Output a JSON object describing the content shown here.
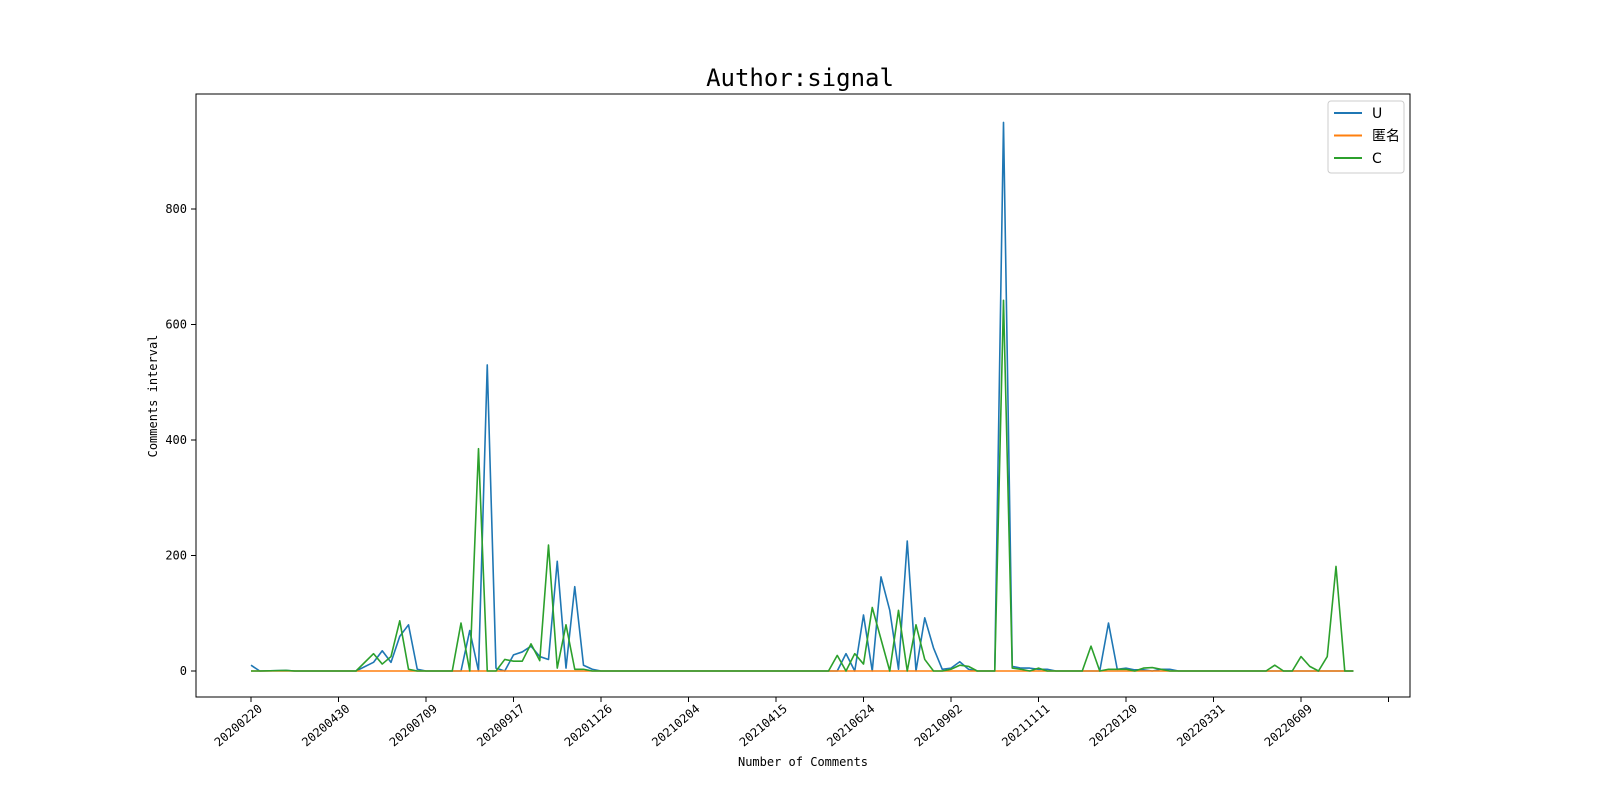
{
  "chart_data": {
    "type": "line",
    "title": "Author:signal",
    "xlabel": "Number of Comments",
    "ylabel": "Comments interval",
    "xticks": [
      "20200220",
      "20200430",
      "20200709",
      "20200917",
      "20201126",
      "20210204",
      "20210415",
      "20210624",
      "20210902",
      "20211111",
      "20220120",
      "20220331",
      "20220609",
      ""
    ],
    "ylim": [
      -46,
      995
    ],
    "yticks": [
      0,
      200,
      400,
      600,
      800
    ],
    "grid": false,
    "legend_position": "top-right",
    "colors": {
      "U": "#1f77b4",
      "匿名": "#ff7f0e",
      "C": "#2ca02c"
    },
    "series": [
      {
        "name": "U",
        "values": [
          10,
          0,
          0,
          0,
          1,
          0,
          0,
          0,
          0,
          0,
          0,
          0,
          0,
          0,
          15,
          35,
          15,
          60,
          80,
          3,
          0,
          0,
          0,
          0,
          0,
          70,
          0,
          530,
          5,
          0,
          28,
          33,
          43,
          25,
          20,
          190,
          5,
          146,
          10,
          3,
          0,
          0,
          0,
          0,
          0,
          0,
          0,
          0,
          0,
          0,
          0,
          0,
          0,
          0,
          0,
          0,
          0,
          0,
          0,
          0,
          0,
          0,
          0,
          0,
          0,
          0,
          0,
          30,
          0,
          97,
          0,
          163,
          105,
          3,
          225,
          0,
          92,
          40,
          3,
          5,
          16,
          3,
          0,
          0,
          0,
          950,
          8,
          5,
          5,
          3,
          3,
          0,
          0,
          0,
          0,
          0,
          0,
          0,
          83,
          3,
          5,
          2,
          2,
          0,
          3,
          3,
          0,
          0,
          0,
          0,
          0,
          0,
          0,
          0,
          0,
          0,
          0,
          0,
          0,
          0,
          0,
          0,
          0,
          0,
          0,
          0,
          0,
          0,
          0,
          0
        ],
        "points": [
          [
            0,
            10
          ],
          [
            1,
            0
          ],
          [
            4,
            1
          ],
          [
            5,
            0
          ],
          [
            12,
            0
          ],
          [
            14,
            15
          ],
          [
            15,
            35
          ],
          [
            16,
            15
          ],
          [
            17,
            60
          ],
          [
            18,
            80
          ],
          [
            19,
            3
          ],
          [
            20,
            0
          ],
          [
            24,
            0
          ],
          [
            25,
            70
          ],
          [
            26,
            0
          ],
          [
            27,
            530
          ],
          [
            28,
            5
          ],
          [
            29,
            0
          ],
          [
            30,
            28
          ],
          [
            31,
            33
          ],
          [
            32,
            43
          ],
          [
            33,
            25
          ],
          [
            34,
            20
          ],
          [
            35,
            190
          ],
          [
            36,
            5
          ],
          [
            37,
            146
          ],
          [
            38,
            10
          ],
          [
            39,
            3
          ],
          [
            40,
            0
          ],
          [
            67,
            0
          ],
          [
            68,
            30
          ],
          [
            69,
            0
          ],
          [
            70,
            97
          ],
          [
            71,
            0
          ],
          [
            72,
            163
          ],
          [
            73,
            105
          ],
          [
            74,
            3
          ],
          [
            75,
            225
          ],
          [
            76,
            0
          ],
          [
            77,
            92
          ],
          [
            78,
            40
          ],
          [
            79,
            3
          ],
          [
            80,
            5
          ],
          [
            81,
            16
          ],
          [
            82,
            3
          ],
          [
            83,
            0
          ],
          [
            85,
            0
          ],
          [
            86,
            950
          ],
          [
            87,
            8
          ],
          [
            88,
            5
          ],
          [
            89,
            5
          ],
          [
            90,
            3
          ],
          [
            91,
            3
          ],
          [
            92,
            0
          ],
          [
            97,
            0
          ],
          [
            98,
            83
          ],
          [
            99,
            3
          ],
          [
            100,
            5
          ],
          [
            101,
            2
          ],
          [
            102,
            2
          ],
          [
            103,
            0
          ],
          [
            104,
            3
          ],
          [
            105,
            3
          ],
          [
            106,
            0
          ],
          [
            126,
            0
          ]
        ]
      },
      {
        "name": "匿名",
        "values": [],
        "points": [
          [
            0,
            0
          ],
          [
            126,
            0
          ]
        ]
      },
      {
        "name": "C",
        "values": [],
        "points": [
          [
            0,
            0
          ],
          [
            1,
            0
          ],
          [
            4,
            1
          ],
          [
            5,
            0
          ],
          [
            12,
            0
          ],
          [
            14,
            30
          ],
          [
            15,
            12
          ],
          [
            16,
            25
          ],
          [
            17,
            87
          ],
          [
            18,
            3
          ],
          [
            19,
            0
          ],
          [
            20,
            0
          ],
          [
            23,
            0
          ],
          [
            24,
            83
          ],
          [
            25,
            0
          ],
          [
            26,
            385
          ],
          [
            27,
            0
          ],
          [
            28,
            0
          ],
          [
            29,
            20
          ],
          [
            30,
            17
          ],
          [
            31,
            17
          ],
          [
            32,
            47
          ],
          [
            33,
            18
          ],
          [
            34,
            218
          ],
          [
            35,
            5
          ],
          [
            36,
            80
          ],
          [
            37,
            3
          ],
          [
            38,
            3
          ],
          [
            39,
            0
          ],
          [
            66,
            0
          ],
          [
            67,
            27
          ],
          [
            68,
            0
          ],
          [
            69,
            30
          ],
          [
            70,
            12
          ],
          [
            71,
            110
          ],
          [
            72,
            55
          ],
          [
            73,
            0
          ],
          [
            74,
            105
          ],
          [
            75,
            0
          ],
          [
            76,
            80
          ],
          [
            77,
            20
          ],
          [
            78,
            0
          ],
          [
            79,
            0
          ],
          [
            80,
            3
          ],
          [
            81,
            10
          ],
          [
            82,
            8
          ],
          [
            83,
            0
          ],
          [
            84,
            0
          ],
          [
            85,
            0
          ],
          [
            86,
            642
          ],
          [
            87,
            5
          ],
          [
            88,
            3
          ],
          [
            89,
            0
          ],
          [
            90,
            5
          ],
          [
            91,
            0
          ],
          [
            92,
            0
          ],
          [
            95,
            0
          ],
          [
            96,
            43
          ],
          [
            97,
            0
          ],
          [
            98,
            3
          ],
          [
            99,
            3
          ],
          [
            100,
            3
          ],
          [
            101,
            0
          ],
          [
            102,
            5
          ],
          [
            103,
            6
          ],
          [
            104,
            3
          ],
          [
            105,
            0
          ],
          [
            116,
            0
          ],
          [
            117,
            10
          ],
          [
            118,
            0
          ],
          [
            119,
            0
          ],
          [
            120,
            25
          ],
          [
            121,
            8
          ],
          [
            122,
            0
          ],
          [
            123,
            25
          ],
          [
            124,
            181
          ],
          [
            125,
            0
          ],
          [
            126,
            0
          ]
        ]
      }
    ]
  }
}
